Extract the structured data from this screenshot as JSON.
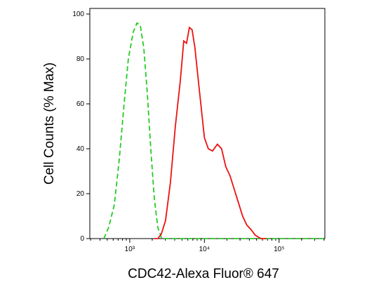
{
  "chart_data": {
    "type": "histogram-line",
    "xlabel": "CDC42-Alexa Fluor® 647",
    "ylabel": "Cell Counts (% Max)",
    "xscale": "log",
    "xlim": [
      292,
      410000
    ],
    "ylim": [
      0,
      102.5
    ],
    "xticks": [
      {
        "value": 1000,
        "label": "10³"
      },
      {
        "value": 10000,
        "label": "10⁴"
      },
      {
        "value": 100000,
        "label": "10⁵"
      }
    ],
    "xminor": [
      300,
      400,
      500,
      600,
      700,
      800,
      900,
      2000,
      3000,
      4000,
      5000,
      6000,
      7000,
      8000,
      9000,
      20000,
      30000,
      40000,
      50000,
      60000,
      70000,
      80000,
      90000,
      200000,
      300000,
      400000
    ],
    "yticks": [
      0,
      20,
      40,
      60,
      80,
      100
    ],
    "series": [
      {
        "color": "#22cc22",
        "dash": true,
        "x": [
          450,
          522,
          621,
          723,
          841,
          957,
          1114,
          1250,
          1383,
          1541,
          1717,
          1914,
          2133,
          2377,
          2649,
          3013,
          10000,
          100000,
          400000
        ],
        "values": [
          0,
          5,
          15,
          35,
          60,
          80,
          92,
          96,
          95,
          85,
          65,
          40,
          18,
          5,
          0.5,
          0,
          0,
          0,
          0
        ]
      },
      {
        "color": "#ee1111",
        "dash": false,
        "x": [
          2133,
          2377,
          2649,
          3013,
          3506,
          4077,
          4742,
          5284,
          5766,
          6284,
          6848,
          7467,
          8322,
          9274,
          10000,
          11270,
          12830,
          14920,
          16970,
          19320,
          22010,
          25060,
          28500,
          32490,
          36970,
          42080,
          47970,
          57020,
          67730
        ],
        "values": [
          0,
          0,
          2,
          8,
          25,
          50,
          70,
          88,
          87,
          94,
          93,
          85,
          70,
          55,
          45,
          40,
          39,
          42,
          40,
          32,
          28,
          22,
          16,
          10,
          6,
          4,
          1.5,
          0,
          0
        ]
      }
    ]
  }
}
